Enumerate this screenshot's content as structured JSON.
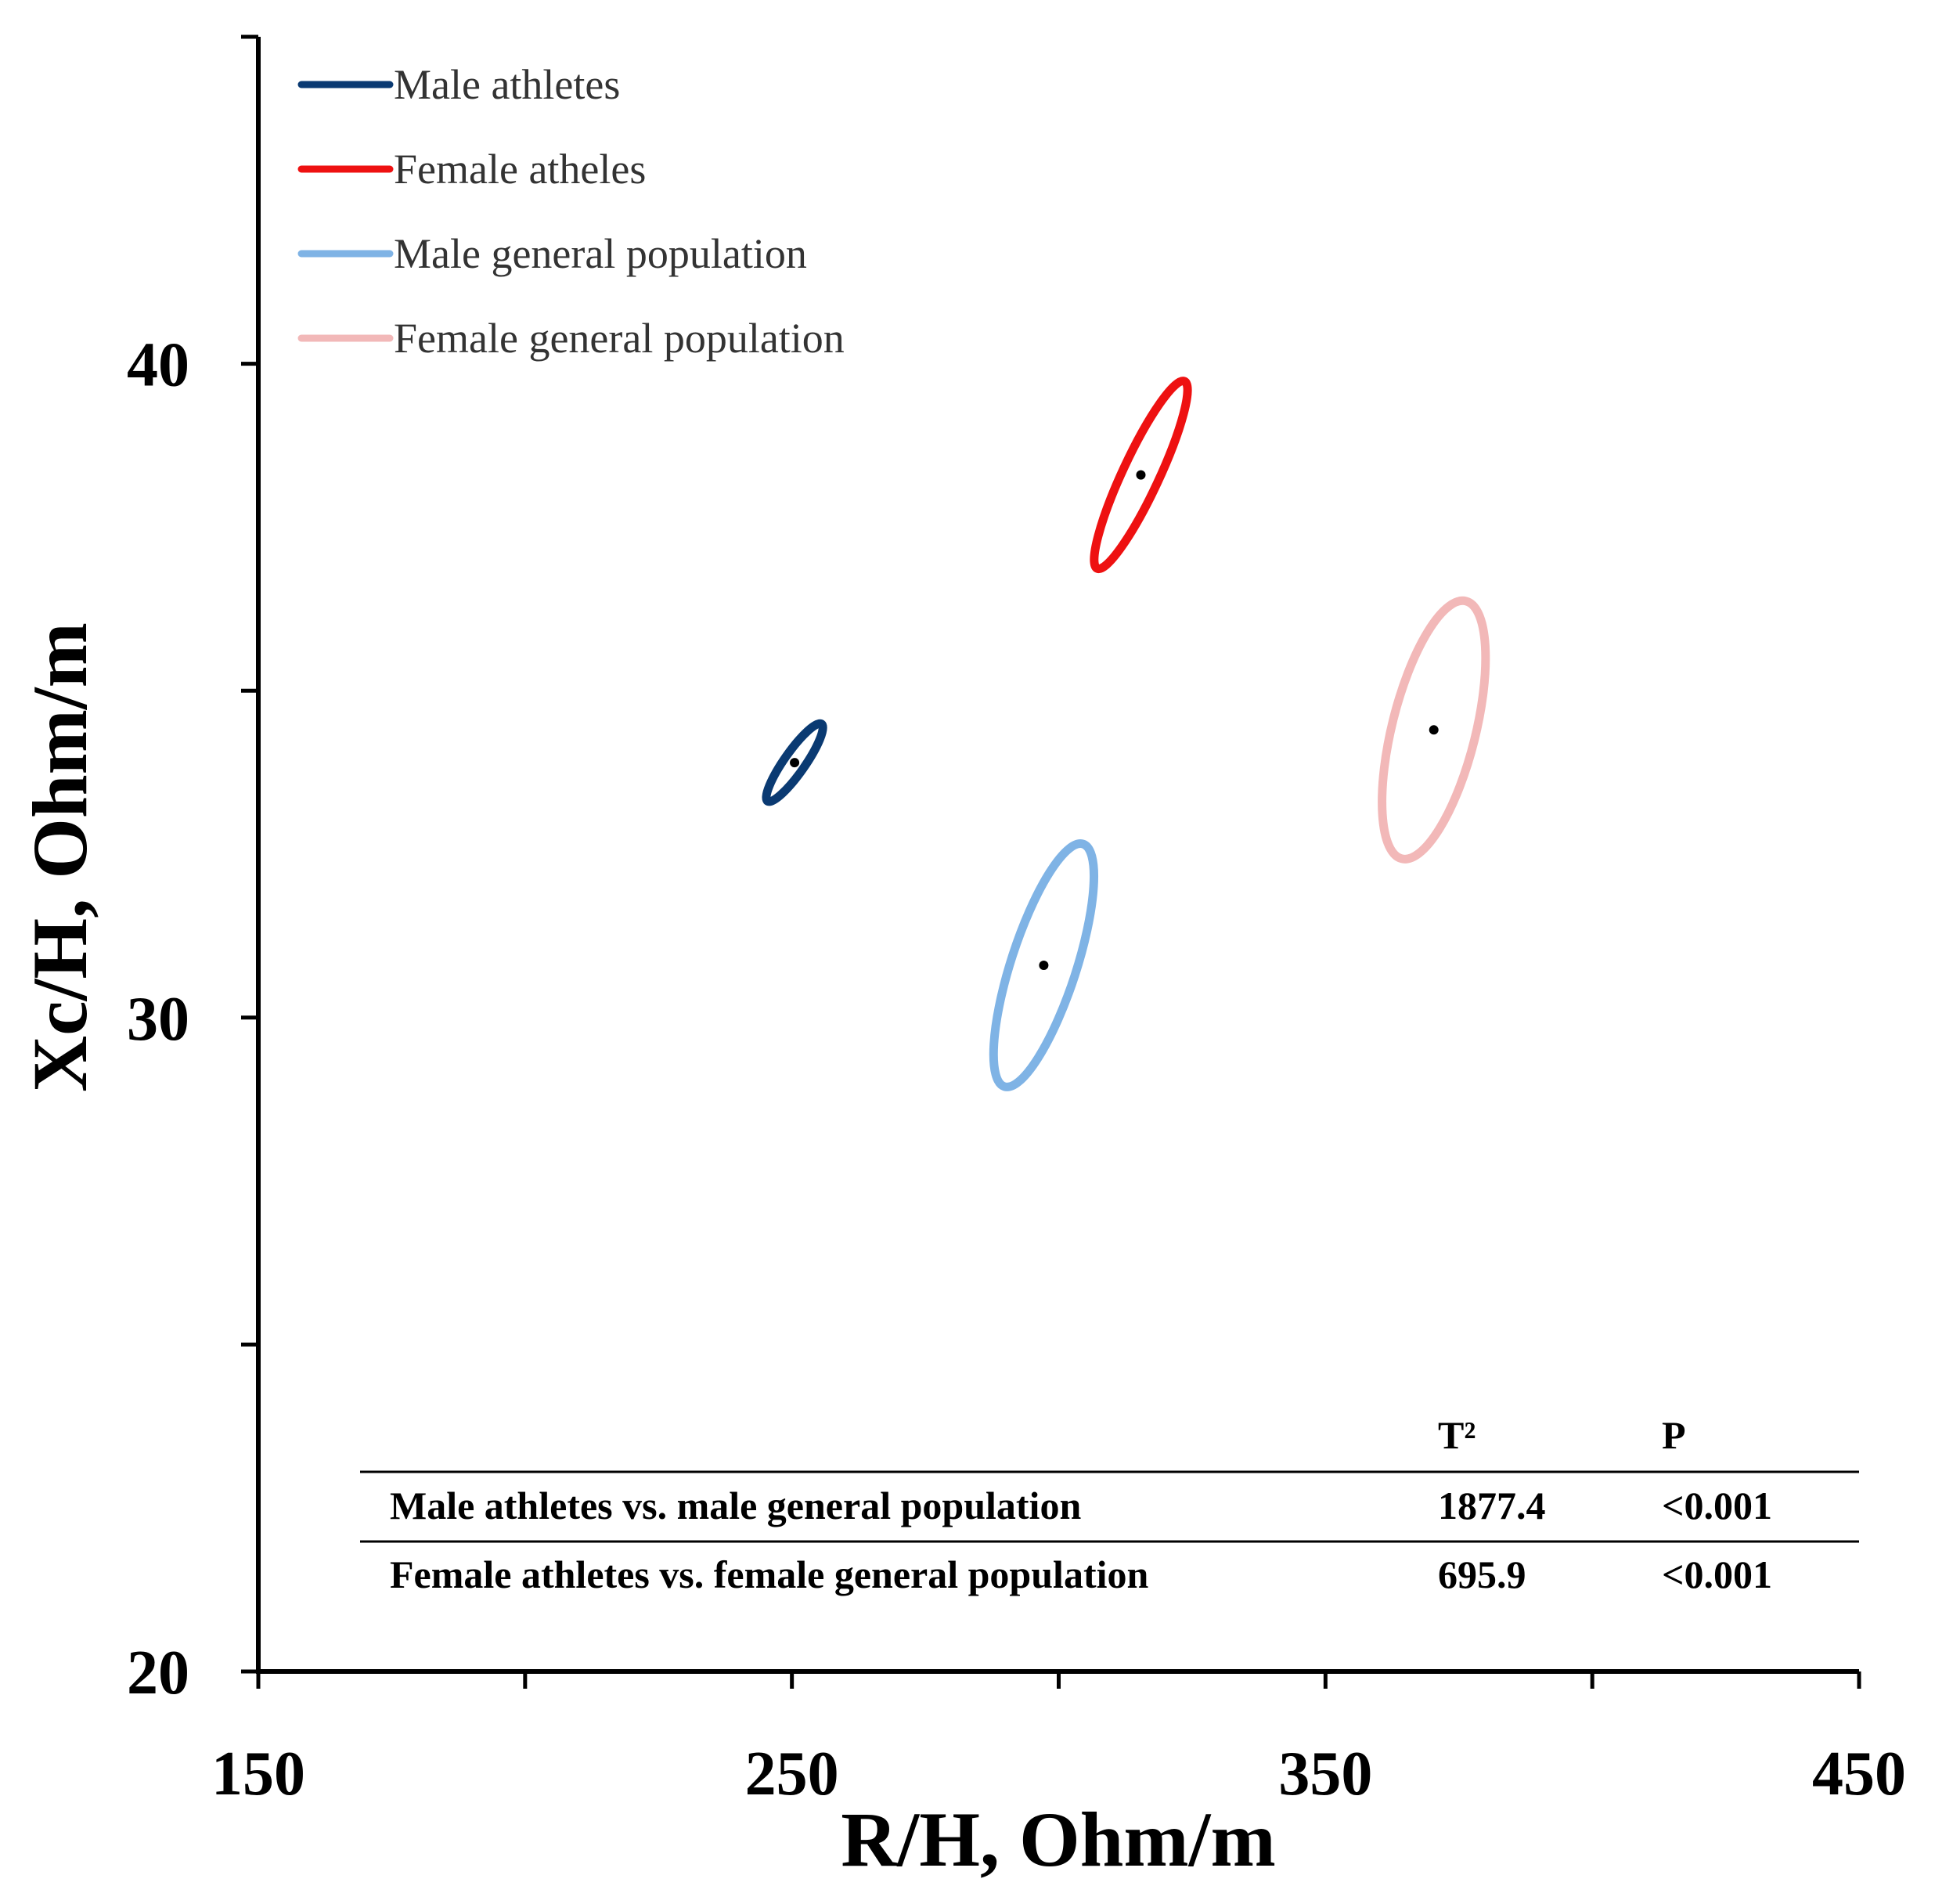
{
  "chart_data": {
    "type": "scatter",
    "subtype": "confidence-ellipses",
    "title": "",
    "xlabel": "R/H, Ohm/m",
    "ylabel": "Xc/H, Ohm/m",
    "xlim": [
      150,
      450
    ],
    "ylim": [
      20,
      45
    ],
    "x_ticks": [
      150,
      200,
      250,
      300,
      350,
      400,
      450
    ],
    "x_tick_labels": [
      "150",
      "250",
      "350",
      "450"
    ],
    "x_tick_label_values": [
      150,
      250,
      350,
      450
    ],
    "y_ticks": [
      20,
      25,
      30,
      35,
      40,
      45
    ],
    "y_tick_labels": [
      "20",
      "30",
      "40"
    ],
    "y_tick_label_values": [
      20,
      30,
      40
    ],
    "legend_position": "top-left",
    "series": [
      {
        "name": "Male athletes",
        "color": "#0a3a72",
        "center": [
          250.5,
          33.9
        ],
        "semi_major": 0.72,
        "semi_minor": 0.16,
        "angle_deg": 55
      },
      {
        "name": "Female atheles",
        "color": "#ee1111",
        "center": [
          315.4,
          38.3
        ],
        "semi_major": 1.58,
        "semi_minor": 0.28,
        "angle_deg": 65
      },
      {
        "name": "Male general population",
        "color": "#7fb3e5",
        "center": [
          297.2,
          30.8
        ],
        "semi_major": 1.95,
        "semi_minor": 0.5,
        "angle_deg": 72
      },
      {
        "name": "Female general population",
        "color": "#f2b8b8",
        "center": [
          370.3,
          34.4
        ],
        "semi_major": 2.03,
        "semi_minor": 0.64,
        "angle_deg": 76
      }
    ],
    "stats_table": {
      "headers": [
        "",
        "T²",
        "P"
      ],
      "rows": [
        [
          "Male athletes vs. male general population",
          "1877.4",
          "<0.001"
        ],
        [
          "Female athletes vs. female general population",
          "695.9",
          "<0.001"
        ]
      ]
    }
  }
}
